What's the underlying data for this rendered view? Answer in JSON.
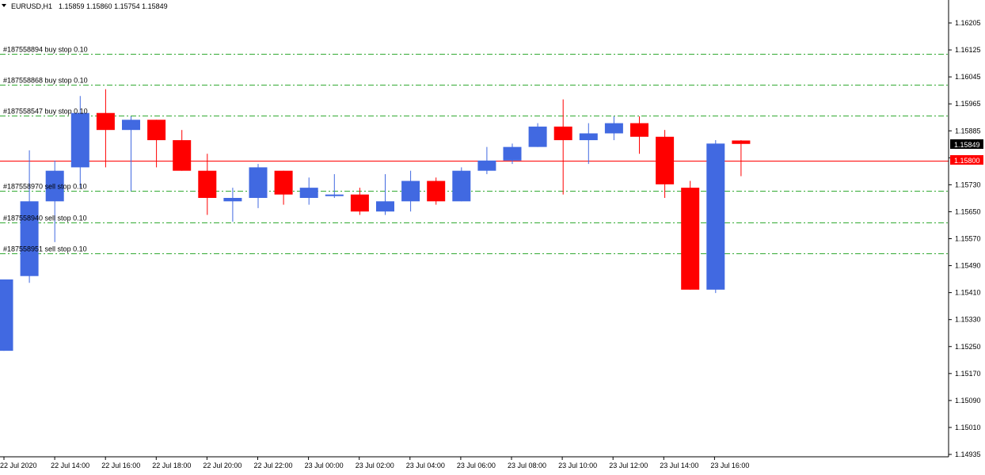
{
  "header": {
    "symbol": "EURUSD,H1",
    "ohlc": "1.15859 1.15860 1.15754 1.15849"
  },
  "colors": {
    "bull": "#4169e1",
    "bear": "#ff0000",
    "order_line": "#33aa33",
    "current_price_line": "#ff0000",
    "axis": "#000000"
  },
  "price_tags": {
    "current": "1.15849",
    "line": "1.15800"
  },
  "chart_data": {
    "type": "candlestick",
    "y_ticks": [
      "1.16205",
      "1.16125",
      "1.16045",
      "1.15965",
      "1.15885",
      "1.15800",
      "1.15730",
      "1.15650",
      "1.15570",
      "1.15490",
      "1.15410",
      "1.15330",
      "1.15250",
      "1.15170",
      "1.15090",
      "1.15010",
      "1.14935"
    ],
    "x_ticks": [
      "22 Jul 2020",
      "22 Jul 14:00",
      "22 Jul 16:00",
      "22 Jul 18:00",
      "22 Jul 20:00",
      "22 Jul 22:00",
      "23 Jul 00:00",
      "23 Jul 02:00",
      "23 Jul 04:00",
      "23 Jul 06:00",
      "23 Jul 08:00",
      "23 Jul 10:00",
      "23 Jul 12:00",
      "23 Jul 14:00",
      "23 Jul 16:00"
    ],
    "ylim": [
      1.14935,
      1.16205
    ],
    "current_price": 1.15849,
    "line_price": 1.158,
    "orders": [
      {
        "label": "#187558894 buy stop 0.10",
        "price": 1.16115
      },
      {
        "label": "#187558868 buy stop 0.10",
        "price": 1.16024
      },
      {
        "label": "#187558547 buy stop 0.10",
        "price": 1.15932
      },
      {
        "label": "#187558970 sell stop 0.10",
        "price": 1.1571
      },
      {
        "label": "#187558940 sell stop 0.10",
        "price": 1.15618
      },
      {
        "label": "#187558951 sell stop 0.10",
        "price": 1.15527
      }
    ],
    "candles": [
      {
        "o": 1.1524,
        "h": 1.1545,
        "l": 1.1524,
        "c": 1.1545
      },
      {
        "o": 1.1546,
        "h": 1.1583,
        "l": 1.1544,
        "c": 1.1568
      },
      {
        "o": 1.1568,
        "h": 1.158,
        "l": 1.1556,
        "c": 1.1577
      },
      {
        "o": 1.1578,
        "h": 1.1599,
        "l": 1.1572,
        "c": 1.1594
      },
      {
        "o": 1.1594,
        "h": 1.1601,
        "l": 1.1578,
        "c": 1.1589
      },
      {
        "o": 1.1589,
        "h": 1.1593,
        "l": 1.1571,
        "c": 1.1592
      },
      {
        "o": 1.1592,
        "h": 1.1592,
        "l": 1.1578,
        "c": 1.1586
      },
      {
        "o": 1.1586,
        "h": 1.1589,
        "l": 1.1577,
        "c": 1.1577
      },
      {
        "o": 1.1577,
        "h": 1.1582,
        "l": 1.1564,
        "c": 1.1569
      },
      {
        "o": 1.1568,
        "h": 1.1572,
        "l": 1.1562,
        "c": 1.1569
      },
      {
        "o": 1.1569,
        "h": 1.1579,
        "l": 1.1566,
        "c": 1.1578
      },
      {
        "o": 1.1577,
        "h": 1.1577,
        "l": 1.1567,
        "c": 1.157
      },
      {
        "o": 1.1569,
        "h": 1.1575,
        "l": 1.1567,
        "c": 1.1572
      },
      {
        "o": 1.157,
        "h": 1.1576,
        "l": 1.1569,
        "c": 1.157
      },
      {
        "o": 1.157,
        "h": 1.1572,
        "l": 1.1564,
        "c": 1.1565
      },
      {
        "o": 1.1565,
        "h": 1.1576,
        "l": 1.1564,
        "c": 1.1568
      },
      {
        "o": 1.1568,
        "h": 1.1577,
        "l": 1.1565,
        "c": 1.1574
      },
      {
        "o": 1.1574,
        "h": 1.1575,
        "l": 1.1567,
        "c": 1.1568
      },
      {
        "o": 1.1568,
        "h": 1.1578,
        "l": 1.1568,
        "c": 1.1577
      },
      {
        "o": 1.1577,
        "h": 1.1584,
        "l": 1.1576,
        "c": 1.158
      },
      {
        "o": 1.158,
        "h": 1.1585,
        "l": 1.1579,
        "c": 1.1584
      },
      {
        "o": 1.1584,
        "h": 1.1591,
        "l": 1.1584,
        "c": 1.159
      },
      {
        "o": 1.159,
        "h": 1.1598,
        "l": 1.157,
        "c": 1.1586
      },
      {
        "o": 1.1586,
        "h": 1.1591,
        "l": 1.1579,
        "c": 1.1588
      },
      {
        "o": 1.1588,
        "h": 1.1593,
        "l": 1.1586,
        "c": 1.1591
      },
      {
        "o": 1.1591,
        "h": 1.1593,
        "l": 1.1582,
        "c": 1.1587
      },
      {
        "o": 1.1587,
        "h": 1.1589,
        "l": 1.1569,
        "c": 1.1573
      },
      {
        "o": 1.1572,
        "h": 1.1574,
        "l": 1.1542,
        "c": 1.1542
      },
      {
        "o": 1.1542,
        "h": 1.1586,
        "l": 1.1541,
        "c": 1.1585
      },
      {
        "o": 1.15859,
        "h": 1.1586,
        "l": 1.15754,
        "c": 1.15849
      }
    ]
  }
}
